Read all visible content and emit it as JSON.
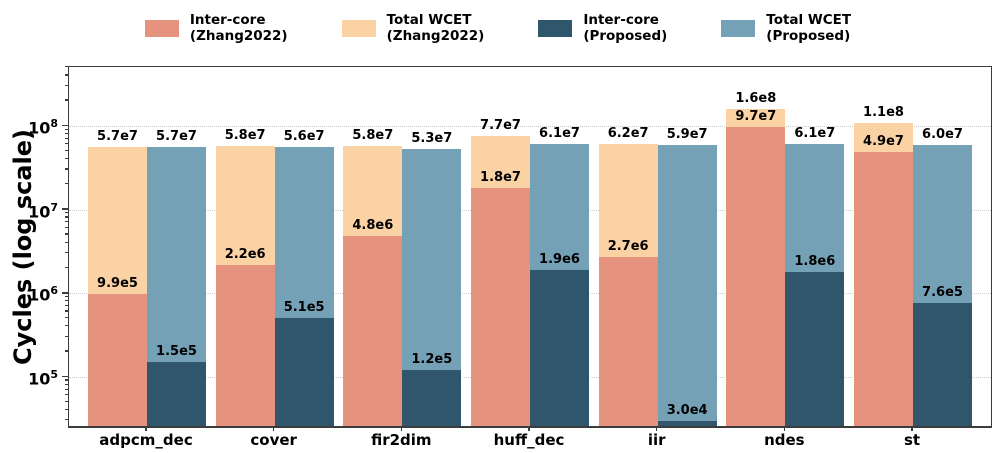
{
  "chart_data": {
    "type": "bar",
    "title": "",
    "ylabel": "Cycles (log scale)",
    "yscale": "log",
    "ylim": [
      26000,
      510000000
    ],
    "grid": "horizontal dotted at decades",
    "legend_position": "top center, 4 entries in one row",
    "yticks": [
      {
        "exp": 5,
        "label": "10^5"
      },
      {
        "exp": 6,
        "label": "10^6"
      },
      {
        "exp": 7,
        "label": "10^7"
      },
      {
        "exp": 8,
        "label": "10^8"
      }
    ],
    "categories": [
      "adpcm_dec",
      "cover",
      "fir2dim",
      "huff_dec",
      "iir",
      "ndes",
      "st"
    ],
    "series": [
      {
        "key": "inter-core-zhang2022",
        "name": "Inter-core (Zhang2022)",
        "legend_lines": "Inter-core\n(Zhang2022)",
        "color": "#E5937E",
        "slot": "left",
        "layer": "front",
        "values": [
          990000,
          2200000,
          4800000,
          18000000,
          2700000,
          97000000,
          49000000
        ],
        "labels": [
          "9.9e5",
          "2.2e6",
          "4.8e6",
          "1.8e7",
          "2.7e6",
          "9.7e7",
          "4.9e7"
        ]
      },
      {
        "key": "total-wcet-zhang2022",
        "name": "Total WCET (Zhang2022)",
        "legend_lines": "Total WCET\n(Zhang2022)",
        "color": "#FBD2A4",
        "slot": "left",
        "layer": "back",
        "values": [
          57000000,
          58000000,
          58000000,
          77000000,
          62000000,
          160000000,
          110000000
        ],
        "labels": [
          "5.7e7",
          "5.8e7",
          "5.8e7",
          "7.7e7",
          "6.2e7",
          "1.6e8",
          "1.1e8"
        ]
      },
      {
        "key": "inter-core-proposed",
        "name": "Inter-core (Proposed)",
        "legend_lines": "Inter-core\n(Proposed)",
        "color": "#30566C",
        "slot": "right",
        "layer": "front",
        "values": [
          150000,
          510000,
          120000,
          1900000,
          30000,
          1800000,
          760000
        ],
        "labels": [
          "1.5e5",
          "5.1e5",
          "1.2e5",
          "1.9e6",
          "3.0e4",
          "1.8e6",
          "7.6e5"
        ]
      },
      {
        "key": "total-wcet-proposed",
        "name": "Total WCET (Proposed)",
        "legend_lines": "Total WCET\n(Proposed)",
        "color": "#74A1B6",
        "slot": "right",
        "layer": "back",
        "values": [
          57000000,
          56000000,
          53000000,
          61000000,
          59000000,
          61000000,
          60000000
        ],
        "labels": [
          "5.7e7",
          "5.6e7",
          "5.3e7",
          "6.1e7",
          "5.9e7",
          "6.1e7",
          "6.0e7"
        ]
      }
    ]
  }
}
